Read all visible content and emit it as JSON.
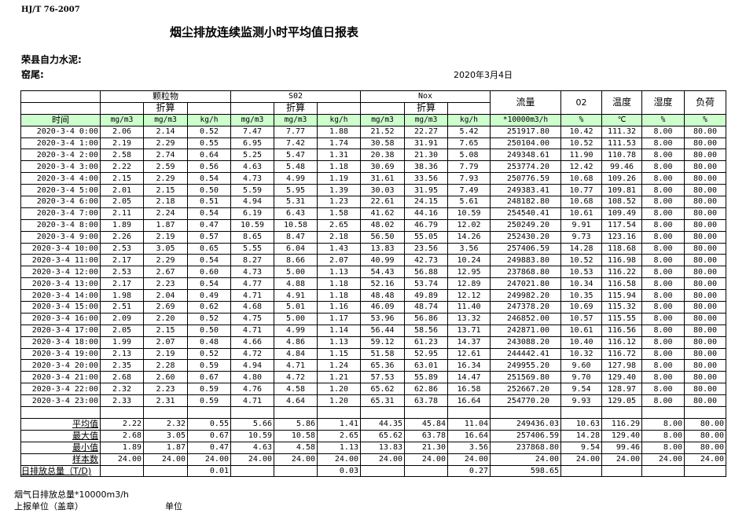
{
  "header": {
    "standard": "HJ/T  76-2007",
    "title": "烟尘排放连续监测小时平均值日报表",
    "company": "荣县自力水泥:",
    "kiln": "窑尾:",
    "date": "2020年3月4日"
  },
  "table": {
    "groups": {
      "particulate": "颗粒物",
      "so2": "S02",
      "nox": "Nox",
      "converted": "折算"
    },
    "single_headers": {
      "flow": "流量",
      "o2": "02",
      "temp": "温度",
      "humidity": "湿度",
      "load": "负荷"
    },
    "units": [
      "时间",
      "mg/m3",
      "mg/m3",
      "kg/h",
      "mg/m3",
      "mg/m3",
      "kg/h",
      "mg/m3",
      "mg/m3",
      "kg/h",
      "*10000m3/h",
      "%",
      "℃",
      "%",
      "%"
    ],
    "accent_color": "#ccffcc",
    "rows": [
      [
        "2020-3-4 0:00",
        "2.06",
        "2.14",
        "0.52",
        "7.47",
        "7.77",
        "1.88",
        "21.52",
        "22.27",
        "5.42",
        "251917.80",
        "10.42",
        "111.32",
        "8.00",
        "80.00"
      ],
      [
        "2020-3-4 1:00",
        "2.19",
        "2.29",
        "0.55",
        "6.95",
        "7.42",
        "1.74",
        "30.58",
        "31.91",
        "7.65",
        "250104.00",
        "10.52",
        "111.53",
        "8.00",
        "80.00"
      ],
      [
        "2020-3-4 2:00",
        "2.58",
        "2.74",
        "0.64",
        "5.25",
        "5.47",
        "1.31",
        "20.38",
        "21.30",
        "5.08",
        "249348.61",
        "11.90",
        "110.78",
        "8.00",
        "80.00"
      ],
      [
        "2020-3-4 3:00",
        "2.22",
        "2.59",
        "0.56",
        "4.63",
        "5.48",
        "1.18",
        "30.69",
        "38.36",
        "7.79",
        "253774.20",
        "12.42",
        "99.46",
        "8.00",
        "80.00"
      ],
      [
        "2020-3-4 4:00",
        "2.15",
        "2.29",
        "0.54",
        "4.73",
        "4.99",
        "1.19",
        "31.61",
        "33.56",
        "7.93",
        "250776.59",
        "10.68",
        "109.26",
        "8.00",
        "80.00"
      ],
      [
        "2020-3-4 5:00",
        "2.01",
        "2.15",
        "0.50",
        "5.59",
        "5.95",
        "1.39",
        "30.03",
        "31.95",
        "7.49",
        "249383.41",
        "10.77",
        "109.81",
        "8.00",
        "80.00"
      ],
      [
        "2020-3-4 6:00",
        "2.05",
        "2.18",
        "0.51",
        "4.94",
        "5.31",
        "1.23",
        "22.61",
        "24.15",
        "5.61",
        "248182.80",
        "10.68",
        "108.52",
        "8.00",
        "80.00"
      ],
      [
        "2020-3-4 7:00",
        "2.11",
        "2.24",
        "0.54",
        "6.19",
        "6.43",
        "1.58",
        "41.62",
        "44.16",
        "10.59",
        "254540.41",
        "10.61",
        "109.49",
        "8.00",
        "80.00"
      ],
      [
        "2020-3-4 8:00",
        "1.89",
        "1.87",
        "0.47",
        "10.59",
        "10.58",
        "2.65",
        "48.02",
        "46.79",
        "12.02",
        "250249.20",
        "9.91",
        "117.54",
        "8.00",
        "80.00"
      ],
      [
        "2020-3-4 9:00",
        "2.26",
        "2.19",
        "0.57",
        "8.65",
        "8.47",
        "2.18",
        "56.50",
        "55.05",
        "14.26",
        "252430.20",
        "9.73",
        "123.16",
        "8.00",
        "80.00"
      ],
      [
        "2020-3-4 10:00",
        "2.53",
        "3.05",
        "0.65",
        "5.55",
        "6.04",
        "1.43",
        "13.83",
        "23.56",
        "3.56",
        "257406.59",
        "14.28",
        "118.68",
        "8.00",
        "80.00"
      ],
      [
        "2020-3-4 11:00",
        "2.17",
        "2.29",
        "0.54",
        "8.27",
        "8.66",
        "2.07",
        "40.99",
        "42.73",
        "10.24",
        "249883.80",
        "10.52",
        "116.98",
        "8.00",
        "80.00"
      ],
      [
        "2020-3-4 12:00",
        "2.53",
        "2.67",
        "0.60",
        "4.73",
        "5.00",
        "1.13",
        "54.43",
        "56.88",
        "12.95",
        "237868.80",
        "10.53",
        "116.22",
        "8.00",
        "80.00"
      ],
      [
        "2020-3-4 13:00",
        "2.17",
        "2.23",
        "0.54",
        "4.77",
        "4.88",
        "1.18",
        "52.16",
        "53.74",
        "12.89",
        "247021.80",
        "10.34",
        "116.58",
        "8.00",
        "80.00"
      ],
      [
        "2020-3-4 14:00",
        "1.98",
        "2.04",
        "0.49",
        "4.71",
        "4.91",
        "1.18",
        "48.48",
        "49.89",
        "12.12",
        "249982.20",
        "10.35",
        "115.94",
        "8.00",
        "80.00"
      ],
      [
        "2020-3-4 15:00",
        "2.51",
        "2.69",
        "0.62",
        "4.68",
        "5.01",
        "1.16",
        "46.09",
        "48.74",
        "11.40",
        "247378.20",
        "10.69",
        "115.32",
        "8.00",
        "80.00"
      ],
      [
        "2020-3-4 16:00",
        "2.09",
        "2.20",
        "0.52",
        "4.75",
        "5.00",
        "1.17",
        "53.96",
        "56.86",
        "13.32",
        "246852.00",
        "10.57",
        "115.55",
        "8.00",
        "80.00"
      ],
      [
        "2020-3-4 17:00",
        "2.05",
        "2.15",
        "0.50",
        "4.71",
        "4.99",
        "1.14",
        "56.44",
        "58.56",
        "13.71",
        "242871.00",
        "10.61",
        "116.56",
        "8.00",
        "80.00"
      ],
      [
        "2020-3-4 18:00",
        "1.99",
        "2.07",
        "0.48",
        "4.66",
        "4.86",
        "1.13",
        "59.12",
        "61.23",
        "14.37",
        "243088.20",
        "10.40",
        "116.12",
        "8.00",
        "80.00"
      ],
      [
        "2020-3-4 19:00",
        "2.13",
        "2.19",
        "0.52",
        "4.72",
        "4.84",
        "1.15",
        "51.58",
        "52.95",
        "12.61",
        "244442.41",
        "10.32",
        "116.72",
        "8.00",
        "80.00"
      ],
      [
        "2020-3-4 20:00",
        "2.35",
        "2.28",
        "0.59",
        "4.94",
        "4.71",
        "1.24",
        "65.36",
        "63.01",
        "16.34",
        "249955.20",
        "9.60",
        "127.98",
        "8.00",
        "80.00"
      ],
      [
        "2020-3-4 21:00",
        "2.68",
        "2.60",
        "0.67",
        "4.80",
        "4.72",
        "1.21",
        "57.53",
        "55.89",
        "14.47",
        "251569.80",
        "9.70",
        "129.40",
        "8.00",
        "80.00"
      ],
      [
        "2020-3-4 22:00",
        "2.32",
        "2.23",
        "0.59",
        "4.76",
        "4.58",
        "1.20",
        "65.62",
        "62.86",
        "16.58",
        "252667.20",
        "9.54",
        "128.97",
        "8.00",
        "80.00"
      ],
      [
        "2020-3-4 23:00",
        "2.33",
        "2.31",
        "0.59",
        "4.71",
        "4.64",
        "1.20",
        "65.31",
        "63.78",
        "16.64",
        "254770.20",
        "9.93",
        "129.05",
        "8.00",
        "80.00"
      ]
    ],
    "summary": [
      [
        "平均值",
        "2.22",
        "2.32",
        "0.55",
        "5.66",
        "5.86",
        "1.41",
        "44.35",
        "45.84",
        "11.04",
        "249436.03",
        "10.63",
        "116.29",
        "8.00",
        "80.00"
      ],
      [
        "最大值",
        "2.68",
        "3.05",
        "0.67",
        "10.59",
        "10.58",
        "2.65",
        "65.62",
        "63.78",
        "16.64",
        "257406.59",
        "14.28",
        "129.40",
        "8.00",
        "80.00"
      ],
      [
        "最小值",
        "1.89",
        "1.87",
        "0.47",
        "4.63",
        "4.58",
        "1.13",
        "13.83",
        "21.30",
        "3.56",
        "237868.80",
        "9.54",
        "99.46",
        "8.00",
        "80.00"
      ],
      [
        "样本数",
        "24.00",
        "24.00",
        "24.00",
        "24.00",
        "24.00",
        "24.00",
        "24.00",
        "24.00",
        "24.00",
        "24.00",
        "24.00",
        "24.00",
        "24.00",
        "24.00"
      ]
    ],
    "daily_total": [
      "日排放总量（T/D)",
      "",
      "",
      "0.01",
      "",
      "",
      "0.03",
      "",
      "",
      "0.27",
      "598.65",
      "",
      "",
      "",
      ""
    ]
  },
  "footer": {
    "flue_gas_total": "烟气日排放总量*10000m3/h",
    "reporting_unit": "上报单位（盖章）",
    "unit": "单位"
  }
}
